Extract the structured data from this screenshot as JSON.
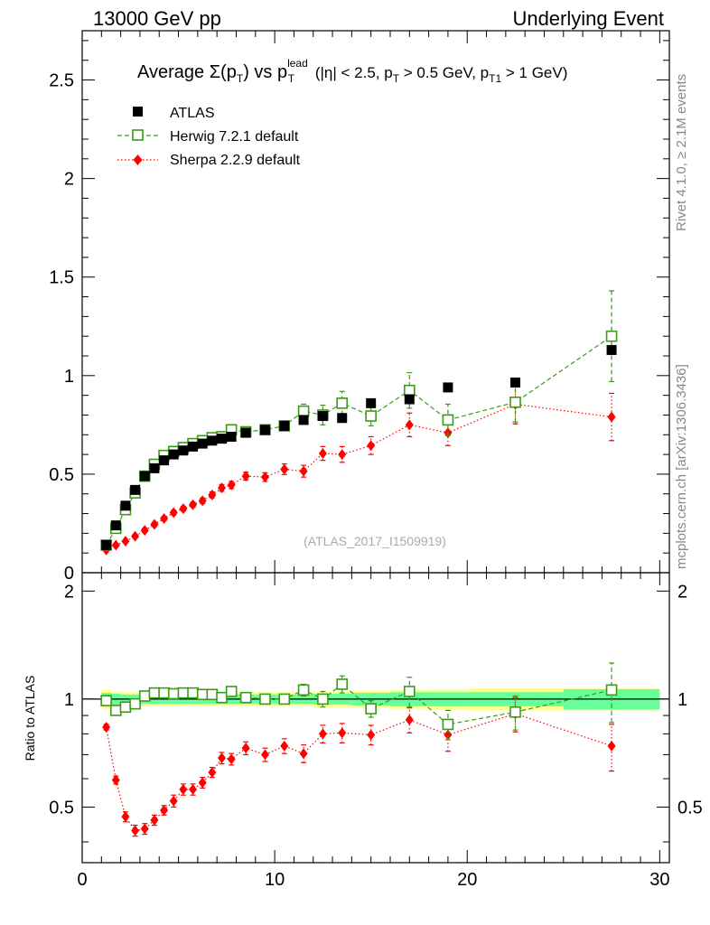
{
  "header": {
    "left": "13000 GeV pp",
    "right": "Underlying Event"
  },
  "side_labels": {
    "rivet": "Rivet 4.1.0, ≥ 2.1M events",
    "mcplots": "mcplots.cern.ch [arXiv:1306.3436]"
  },
  "chart_data": {
    "type": "scatter",
    "title": {
      "prefix": "Average ",
      "sigma": "Σ(p",
      "sub_T1": "T",
      "mid": ") vs p",
      "sup_lead": "lead",
      "sub_T2": "T",
      "cut1": " (|η| < 2.5, p",
      "sub_T3": "T",
      "cut2": " > 0.5 GeV, p",
      "sub_T4": "T1",
      "cut3": " > 1 GeV)"
    },
    "analysis_label": "(ATLAS_2017_I1509919)",
    "ratio_ylabel": "Ratio to ATLAS",
    "xlim": [
      0,
      30.5
    ],
    "main_ylim": [
      0,
      2.75
    ],
    "ratio_ylim": [
      0.35,
      2.25
    ],
    "xticks": [
      "0",
      "10",
      "20",
      "30"
    ],
    "main_yticks": [
      "0",
      "0.5",
      "1",
      "1.5",
      "2",
      "2.5"
    ],
    "ratio_yticks": [
      "0.5",
      "1",
      "2"
    ],
    "legend": [
      "ATLAS",
      "Herwig 7.2.1 default",
      "Sherpa 2.2.9 default"
    ],
    "colors": {
      "atlas": "#000000",
      "herwig": "#3a9a1a",
      "sherpa": "#ff0000",
      "band_inner": "#66ff99",
      "band_outer": "#ffff88",
      "analysis_label": "#aaaaaa"
    },
    "x": [
      1.25,
      1.75,
      2.25,
      2.75,
      3.25,
      3.75,
      4.25,
      4.75,
      5.25,
      5.75,
      6.25,
      6.75,
      7.25,
      7.75,
      8.5,
      9.5,
      10.5,
      11.5,
      12.5,
      13.5,
      15,
      17,
      19,
      22.5,
      27.5
    ],
    "xerr": [
      0.25,
      0.25,
      0.25,
      0.25,
      0.25,
      0.25,
      0.25,
      0.25,
      0.25,
      0.25,
      0.25,
      0.25,
      0.25,
      0.25,
      0.5,
      0.5,
      0.5,
      0.5,
      0.5,
      0.5,
      1,
      1,
      1,
      2.5,
      2.5
    ],
    "series": [
      {
        "name": "ATLAS",
        "values": [
          0.14,
          0.24,
          0.34,
          0.42,
          0.49,
          0.53,
          0.57,
          0.6,
          0.62,
          0.64,
          0.655,
          0.67,
          0.68,
          0.69,
          0.71,
          0.725,
          0.745,
          0.775,
          0.795,
          0.785,
          0.86,
          0.88,
          0.94,
          0.965,
          1.13
        ]
      },
      {
        "name": "Herwig 7.2.1 default",
        "values": [
          0.14,
          0.225,
          0.32,
          0.405,
          0.49,
          0.55,
          0.595,
          0.615,
          0.635,
          0.655,
          0.67,
          0.685,
          0.69,
          0.725,
          0.715,
          0.725,
          0.745,
          0.82,
          0.8,
          0.86,
          0.795,
          0.925,
          0.775,
          0.865,
          1.2
        ],
        "errors": [
          0.005,
          0.006,
          0.008,
          0.01,
          0.012,
          0.013,
          0.013,
          0.013,
          0.014,
          0.014,
          0.015,
          0.016,
          0.017,
          0.018,
          0.018,
          0.02,
          0.025,
          0.035,
          0.05,
          0.06,
          0.05,
          0.09,
          0.08,
          0.1,
          0.23
        ],
        "ratio": [
          0.99,
          0.93,
          0.95,
          0.97,
          1.02,
          1.04,
          1.04,
          1.035,
          1.04,
          1.04,
          1.03,
          1.03,
          1.01,
          1.05,
          1.01,
          1.0,
          1.0,
          1.06,
          1.0,
          1.1,
          0.94,
          1.05,
          0.85,
          0.92,
          1.06
        ],
        "ratio_errors": [
          0.01,
          0.01,
          0.01,
          0.01,
          0.01,
          0.01,
          0.01,
          0.01,
          0.01,
          0.01,
          0.01,
          0.01,
          0.01,
          0.02,
          0.02,
          0.02,
          0.03,
          0.04,
          0.05,
          0.06,
          0.05,
          0.1,
          0.08,
          0.1,
          0.2
        ]
      },
      {
        "name": "Sherpa 2.2.9 default",
        "values": [
          0.115,
          0.14,
          0.16,
          0.185,
          0.215,
          0.245,
          0.275,
          0.305,
          0.325,
          0.345,
          0.365,
          0.395,
          0.43,
          0.445,
          0.49,
          0.485,
          0.525,
          0.515,
          0.605,
          0.6,
          0.645,
          0.75,
          0.71,
          0.855,
          0.79
        ],
        "errors": [
          0.006,
          0.007,
          0.008,
          0.009,
          0.01,
          0.01,
          0.011,
          0.012,
          0.012,
          0.013,
          0.014,
          0.015,
          0.017,
          0.018,
          0.02,
          0.022,
          0.027,
          0.03,
          0.035,
          0.04,
          0.045,
          0.06,
          0.065,
          0.1,
          0.12
        ],
        "ratio": [
          0.835,
          0.595,
          0.47,
          0.43,
          0.435,
          0.46,
          0.49,
          0.52,
          0.56,
          0.56,
          0.585,
          0.625,
          0.685,
          0.68,
          0.73,
          0.7,
          0.74,
          0.705,
          0.8,
          0.805,
          0.795,
          0.875,
          0.795,
          0.91,
          0.74
        ],
        "ratio_errors": [
          0.015,
          0.015,
          0.015,
          0.015,
          0.015,
          0.015,
          0.015,
          0.02,
          0.02,
          0.02,
          0.02,
          0.02,
          0.025,
          0.025,
          0.03,
          0.03,
          0.035,
          0.04,
          0.045,
          0.05,
          0.05,
          0.07,
          0.08,
          0.1,
          0.11
        ]
      }
    ],
    "atlas_band": {
      "inner": [
        0.04,
        0.035,
        0.03,
        0.03,
        0.03,
        0.03,
        0.03,
        0.03,
        0.03,
        0.03,
        0.03,
        0.03,
        0.03,
        0.03,
        0.03,
        0.03,
        0.03,
        0.03,
        0.035,
        0.035,
        0.04,
        0.045,
        0.045,
        0.045,
        0.065
      ],
      "outer": [
        0.06,
        0.05,
        0.045,
        0.045,
        0.045,
        0.045,
        0.045,
        0.045,
        0.045,
        0.045,
        0.045,
        0.045,
        0.045,
        0.045,
        0.045,
        0.045,
        0.045,
        0.045,
        0.05,
        0.05,
        0.055,
        0.06,
        0.065,
        0.07,
        0.07
      ]
    }
  }
}
